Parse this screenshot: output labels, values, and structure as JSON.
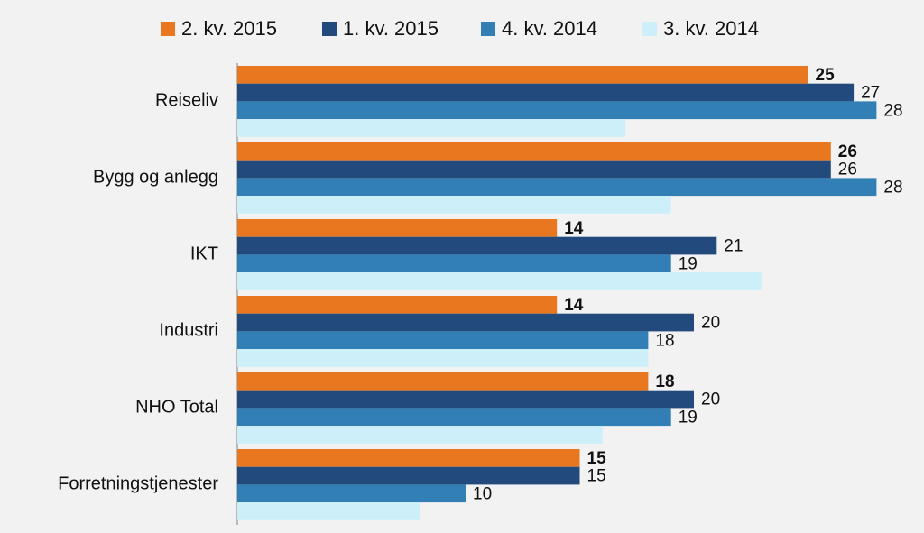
{
  "chart_data": {
    "type": "hbar",
    "categories": [
      "Reiseliv",
      "Bygg og anlegg",
      "IKT",
      "Industri",
      "NHO Total",
      "Forretningstjenester"
    ],
    "series": [
      {
        "name": "2. kv. 2015",
        "color": "#e8771f",
        "label_style": "bold",
        "values": [
          25,
          26,
          14,
          14,
          18,
          15
        ]
      },
      {
        "name": "1. kv. 2015",
        "color": "#234a7c",
        "label_style": "normal",
        "values": [
          27,
          26,
          21,
          20,
          20,
          15
        ]
      },
      {
        "name": "4. kv. 2014",
        "color": "#317fb5",
        "label_style": "normal",
        "values": [
          28,
          28,
          19,
          18,
          19,
          10
        ]
      },
      {
        "name": "3. kv. 2014",
        "color": "#cdeff9",
        "label_style": "none",
        "values": [
          17,
          19,
          23,
          18,
          16,
          8
        ]
      }
    ],
    "xlim": [
      0,
      30
    ],
    "legend": "top"
  }
}
